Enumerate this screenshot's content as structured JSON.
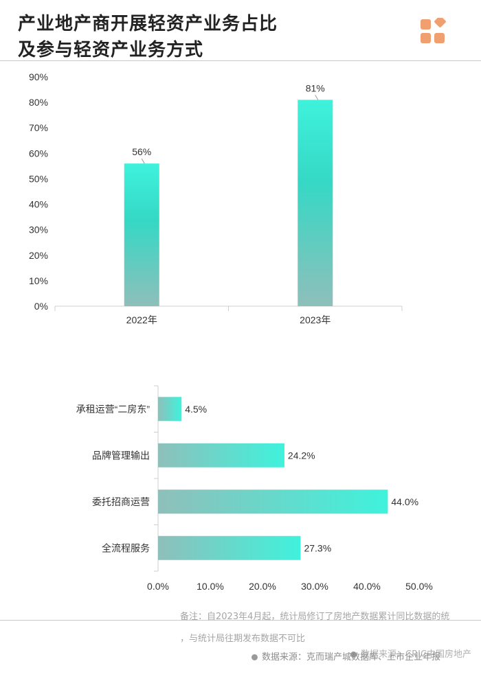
{
  "header": {
    "title_line1": "产业地产商开展轻资产业务占比",
    "title_line2": "及参与轻资产业务方式",
    "logo_icon": "orange-squares-logo-icon",
    "accent_color": "#f0a070"
  },
  "chart_data": [
    {
      "type": "bar",
      "orientation": "vertical",
      "categories": [
        "2022年",
        "2023年"
      ],
      "values": [
        56,
        81
      ],
      "data_labels": [
        "56%",
        "81%"
      ],
      "y_ticks": [
        "0%",
        "10%",
        "20%",
        "30%",
        "40%",
        "50%",
        "60%",
        "70%",
        "80%",
        "90%"
      ],
      "ylim": [
        0,
        90
      ],
      "title": "",
      "xlabel": "",
      "ylabel": "",
      "grid": false,
      "bar_color_top": "#3ff2dc",
      "bar_color_bottom": "#8fbfba"
    },
    {
      "type": "bar",
      "orientation": "horizontal",
      "categories": [
        "承租运营“二房东”",
        "品牌管理输出",
        "委托招商运营",
        "全流程服务"
      ],
      "values": [
        4.5,
        24.2,
        44.0,
        27.3
      ],
      "data_labels": [
        "4.5%",
        "24.2%",
        "44.0%",
        "27.3%"
      ],
      "x_ticks": [
        "0.0%",
        "10.0%",
        "20.0%",
        "30.0%",
        "40.0%",
        "50.0%"
      ],
      "xlim": [
        0,
        50
      ],
      "title": "",
      "xlabel": "",
      "ylabel": "",
      "grid": false,
      "bar_color_left": "#8fbfba",
      "bar_color_right": "#3ff2dc"
    }
  ],
  "footer": {
    "note_line1": "备注：自2023年4月起，统计局修订了房地产数据累计同比数据的统",
    "note_line2": "，与统计局往期发布数据不可比",
    "source_main": "数据来源：克而瑞产城数据库、上市企业年报",
    "source_overlap": "数据来源：CRIC中国房地产"
  }
}
